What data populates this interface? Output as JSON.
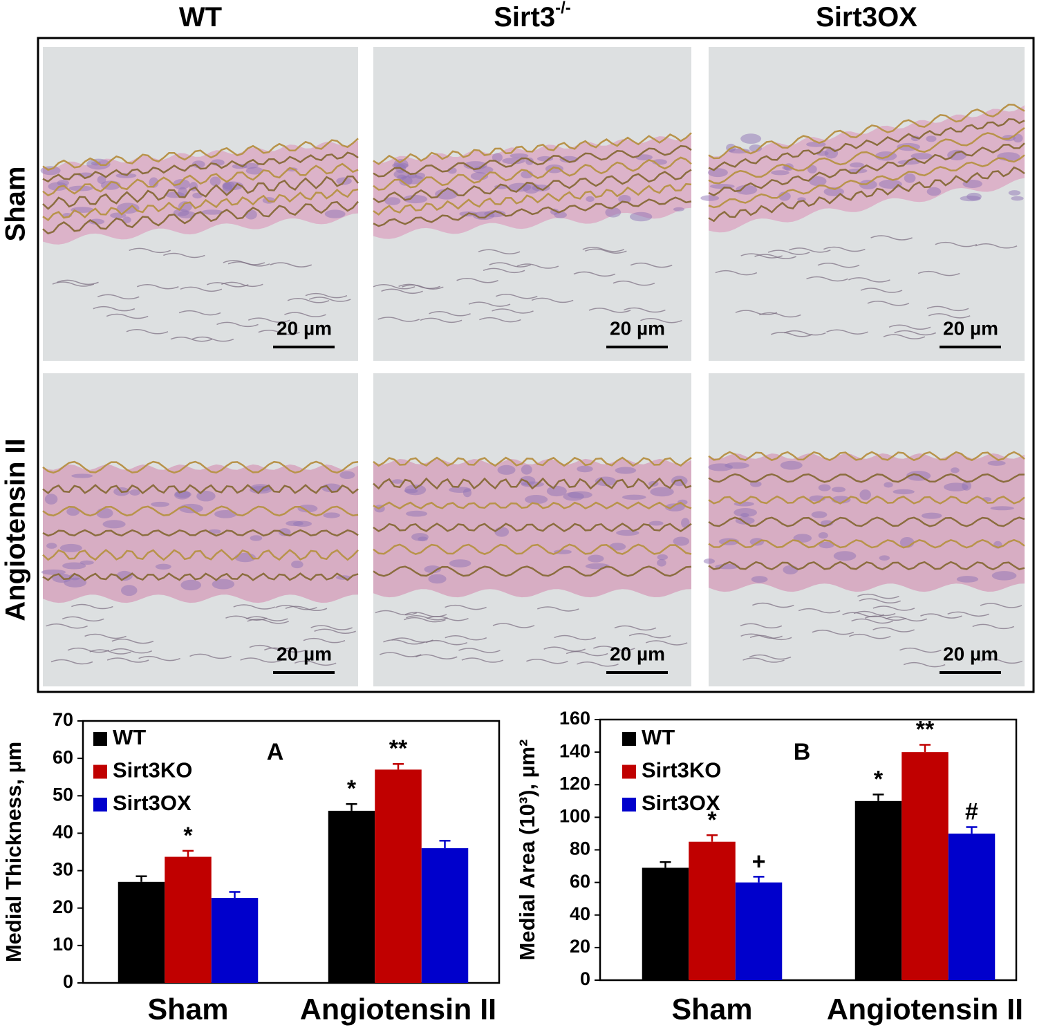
{
  "panel": {
    "columns": [
      {
        "label": "WT"
      },
      {
        "label": "Sirt3",
        "superscript": "-/-"
      },
      {
        "label": "Sirt3OX"
      }
    ],
    "rows": [
      "Sham",
      "Angiotensin II"
    ],
    "scale_bars": [
      [
        "20 µm",
        "20 µm",
        "20 µm"
      ],
      [
        "20 µm",
        "20 µm",
        "20 µm"
      ]
    ]
  },
  "chart_data": [
    {
      "type": "bar",
      "panel_letter": "A",
      "y_label": "Medial Thickness, µm",
      "categories": [
        "Sham",
        "Angiotensin II"
      ],
      "ylim": [
        0,
        70
      ],
      "yticks": [
        0,
        10,
        20,
        30,
        40,
        50,
        60,
        70
      ],
      "series": [
        {
          "name": "WT",
          "color": "#000000",
          "values": [
            27,
            46
          ],
          "errors": [
            1.5,
            1.8
          ],
          "markers": [
            null,
            "*"
          ]
        },
        {
          "name": "Sirt3KO",
          "color": "#c00000",
          "values": [
            33.7,
            57
          ],
          "errors": [
            1.6,
            1.5
          ],
          "markers": [
            "*",
            "**"
          ]
        },
        {
          "name": "Sirt3OX",
          "color": "#0000cc",
          "values": [
            22.7,
            36
          ],
          "errors": [
            1.6,
            2
          ]
        }
      ]
    },
    {
      "type": "bar",
      "panel_letter": "B",
      "y_label": "Medial Area (10³), µm²",
      "categories": [
        "Sham",
        "Angiotensin II"
      ],
      "ylim": [
        0,
        160
      ],
      "yticks": [
        0,
        20,
        40,
        60,
        80,
        100,
        120,
        140,
        160
      ],
      "series": [
        {
          "name": "WT",
          "color": "#000000",
          "values": [
            69,
            110
          ],
          "errors": [
            3.5,
            4
          ],
          "markers": [
            null,
            "*"
          ]
        },
        {
          "name": "Sirt3KO",
          "color": "#c00000",
          "values": [
            85,
            140
          ],
          "errors": [
            4,
            4.5
          ],
          "markers": [
            "*",
            "**"
          ]
        },
        {
          "name": "Sirt3OX",
          "color": "#0000cc",
          "values": [
            60,
            90
          ],
          "errors": [
            3.5,
            4
          ],
          "markers": [
            "+",
            "#"
          ]
        }
      ]
    }
  ]
}
